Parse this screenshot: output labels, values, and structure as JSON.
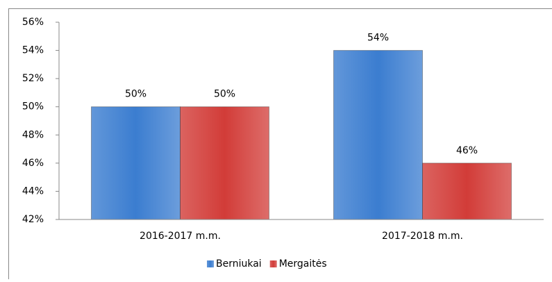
{
  "chart_data": {
    "type": "bar",
    "categories": [
      "2016-2017 m.m.",
      "2017-2018 m.m."
    ],
    "series": [
      {
        "name": "Berniukai",
        "color": "#3b7dd0",
        "values": [
          50,
          54
        ],
        "value_labels": [
          "50%",
          "54%"
        ]
      },
      {
        "name": "Mergaitės",
        "color": "#d23c38",
        "values": [
          50,
          46
        ],
        "value_labels": [
          "50%",
          "46%"
        ]
      }
    ],
    "ylim": [
      42,
      56
    ],
    "yticks": [
      {
        "value": 42,
        "label": "42%"
      },
      {
        "value": 44,
        "label": "44%"
      },
      {
        "value": 46,
        "label": "46%"
      },
      {
        "value": 48,
        "label": "48%"
      },
      {
        "value": 50,
        "label": "50%"
      },
      {
        "value": 52,
        "label": "52%"
      },
      {
        "value": 54,
        "label": "54%"
      },
      {
        "value": 56,
        "label": "56%"
      }
    ],
    "legend": "bottom"
  }
}
